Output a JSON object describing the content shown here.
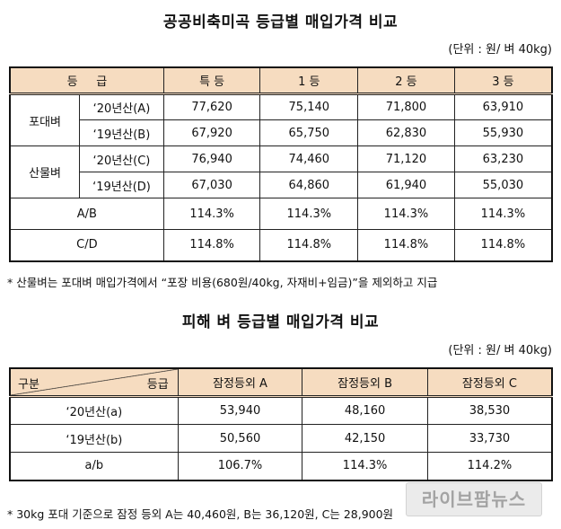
{
  "table1": {
    "title": "공공비축미곡 등급별 매입가격 비교",
    "unit": "(단위 : 원/ 벼 40kg)",
    "header": [
      "등     급",
      "특 등",
      "1 등",
      "2 등",
      "3 등"
    ],
    "groups": [
      {
        "label": "포대벼",
        "rows": [
          {
            "year": "‘20년산(A)",
            "values": [
              "77,620",
              "75,140",
              "71,800",
              "63,910"
            ]
          },
          {
            "year": "‘19년산(B)",
            "values": [
              "67,920",
              "65,750",
              "62,830",
              "55,930"
            ]
          }
        ]
      },
      {
        "label": "산물벼",
        "rows": [
          {
            "year": "‘20년산(C)",
            "values": [
              "76,940",
              "74,460",
              "71,120",
              "63,230"
            ]
          },
          {
            "year": "‘19년산(D)",
            "values": [
              "67,030",
              "64,860",
              "61,940",
              "55,030"
            ]
          }
        ]
      }
    ],
    "ratios": [
      {
        "label": "A/B",
        "values": [
          "114.3%",
          "114.3%",
          "114.3%",
          "114.3%"
        ]
      },
      {
        "label": "C/D",
        "values": [
          "114.8%",
          "114.8%",
          "114.8%",
          "114.8%"
        ]
      }
    ],
    "note": "* 산물벼는 포대벼 매입가격에서 “포장 비용(680원/40kg, 자재비+임금)”을 제외하고 지급"
  },
  "table2": {
    "title": "피해 벼 등급별 매입가격 비교",
    "unit": "(단위 : 원/ 벼 40kg)",
    "corner_left": "구분",
    "corner_right": "등급",
    "header": [
      "잠정등외 A",
      "잠정등외 B",
      "잠정등외 C"
    ],
    "rows": [
      {
        "label": "‘20년산(a)",
        "values": [
          "53,940",
          "48,160",
          "38,530"
        ]
      },
      {
        "label": "‘19년산(b)",
        "values": [
          "50,560",
          "42,150",
          "33,730"
        ]
      },
      {
        "label": "a/b",
        "values": [
          "106.7%",
          "114.3%",
          "114.2%"
        ]
      }
    ],
    "note": "* 30kg 포대 기준으로 잠정 등외 A는 40,460원, B는 36,120원, C는 28,900원"
  },
  "watermark": "라이브팜뉴스",
  "colors": {
    "header_bg": "#f6dcc0",
    "border": "#222222"
  }
}
